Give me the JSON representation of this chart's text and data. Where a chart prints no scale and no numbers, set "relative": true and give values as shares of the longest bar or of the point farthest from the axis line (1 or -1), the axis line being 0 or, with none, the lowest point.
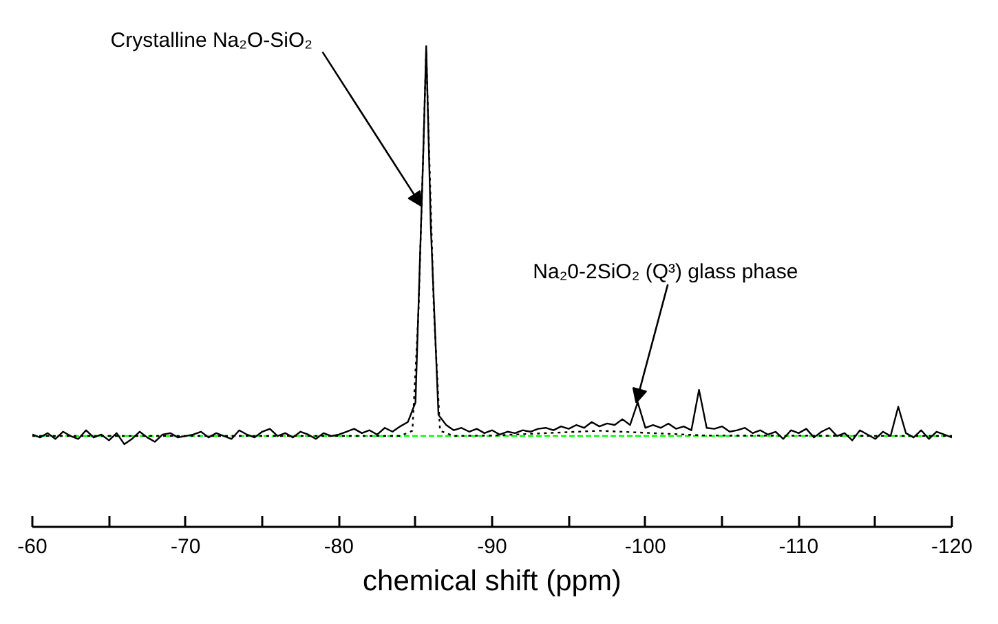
{
  "chart_data": {
    "type": "line",
    "relative": true,
    "xlabel": "chemical shift (ppm)",
    "xlim": [
      -60,
      -120
    ],
    "xticks": [
      -60,
      {
        "value": -65,
        "label": null
      },
      -70,
      {
        "value": -75,
        "label": null
      },
      -80,
      {
        "value": -85,
        "label": null
      },
      -90,
      {
        "value": -95,
        "label": null
      },
      -100,
      {
        "value": -105,
        "label": null
      },
      -110,
      {
        "value": -115,
        "label": null
      },
      -120
    ],
    "grid": false,
    "tick_labels": "x",
    "annotations": [
      {
        "text": "Crystalline Na₂O-SiO₂",
        "x": -85.4,
        "y": 0.667
      },
      {
        "text": "Na₂0-2SiO₂ (Q³)  glass phase",
        "x": -99.4,
        "y": 0.258
      }
    ],
    "series": [
      {
        "color": "#000000",
        "line_style": "solid",
        "x": [
          -60,
          -60.5,
          -61,
          -61.5,
          -62,
          -62.5,
          -63,
          -63.5,
          -64,
          -64.5,
          -65,
          -65.5,
          -66,
          -66.5,
          -67,
          -67.5,
          -68,
          -68.5,
          -69,
          -69.5,
          -70,
          -70.5,
          -71,
          -71.5,
          -72,
          -72.5,
          -73,
          -73.5,
          -74,
          -74.5,
          -75,
          -75.5,
          -76,
          -76.5,
          -77,
          -77.5,
          -78,
          -78.5,
          -79,
          -79.5,
          -80,
          -80.5,
          -81,
          -81.5,
          -82,
          -82.5,
          -83,
          -83.5,
          -84,
          -84.5,
          -85,
          -85.5,
          -85.7,
          -86,
          -86.5,
          -87,
          -87.5,
          -88,
          -88.5,
          -89,
          -89.5,
          -90,
          -90.5,
          -91,
          -91.5,
          -92,
          -92.5,
          -93,
          -93.5,
          -94,
          -94.5,
          -95,
          -95.5,
          -96,
          -96.5,
          -97,
          -97.5,
          -98,
          -98.5,
          -99,
          -99.5,
          -100,
          -100.5,
          -101,
          -101.5,
          -102,
          -102.5,
          -103,
          -103.5,
          -104,
          -104.5,
          -105,
          -105.5,
          -106,
          -106.5,
          -107,
          -107.5,
          -108,
          -108.5,
          -109,
          -109.5,
          -110,
          -110.5,
          -111,
          -111.5,
          -112,
          -112.5,
          -113,
          -113.5,
          -114,
          -114.5,
          -115,
          -115.5,
          -116,
          -116.5,
          -117,
          -117.5,
          -118,
          -118.5,
          -119,
          -119.5,
          -120
        ],
        "values": [
          0.192,
          0.186,
          0.195,
          0.183,
          0.198,
          0.189,
          0.183,
          0.201,
          0.186,
          0.192,
          0.18,
          0.195,
          0.172,
          0.183,
          0.198,
          0.186,
          0.177,
          0.192,
          0.195,
          0.186,
          0.189,
          0.192,
          0.198,
          0.186,
          0.195,
          0.189,
          0.183,
          0.201,
          0.192,
          0.186,
          0.198,
          0.204,
          0.189,
          0.195,
          0.186,
          0.198,
          0.192,
          0.183,
          0.195,
          0.189,
          0.192,
          0.198,
          0.204,
          0.195,
          0.201,
          0.192,
          0.206,
          0.198,
          0.209,
          0.218,
          0.259,
          0.769,
          1.0,
          0.624,
          0.233,
          0.212,
          0.201,
          0.206,
          0.198,
          0.204,
          0.195,
          0.201,
          0.192,
          0.198,
          0.195,
          0.201,
          0.198,
          0.204,
          0.206,
          0.201,
          0.209,
          0.204,
          0.212,
          0.206,
          0.218,
          0.209,
          0.215,
          0.212,
          0.224,
          0.212,
          0.259,
          0.206,
          0.212,
          0.206,
          0.215,
          0.204,
          0.209,
          0.201,
          0.285,
          0.206,
          0.204,
          0.209,
          0.198,
          0.201,
          0.206,
          0.195,
          0.201,
          0.192,
          0.198,
          0.183,
          0.201,
          0.195,
          0.204,
          0.186,
          0.198,
          0.206,
          0.189,
          0.195,
          0.18,
          0.201,
          0.192,
          0.183,
          0.198,
          0.189,
          0.25,
          0.195,
          0.186,
          0.201,
          0.183,
          0.198,
          0.192,
          0.186
        ]
      },
      {
        "color": "#000000",
        "line_style": "dotted",
        "x": [
          -60,
          -84,
          -84.8,
          -85.2,
          -85.7,
          -86.2,
          -86.6,
          -87.5,
          -90,
          -97,
          -104,
          -120
        ],
        "values": [
          0.189,
          0.189,
          0.2,
          0.45,
          0.99,
          0.45,
          0.2,
          0.189,
          0.19,
          0.2,
          0.19,
          0.189
        ]
      },
      {
        "color": "#00ff00",
        "line_style": "dashed",
        "x": [
          -60,
          -120
        ],
        "values": [
          0.189,
          0.189
        ]
      }
    ]
  }
}
